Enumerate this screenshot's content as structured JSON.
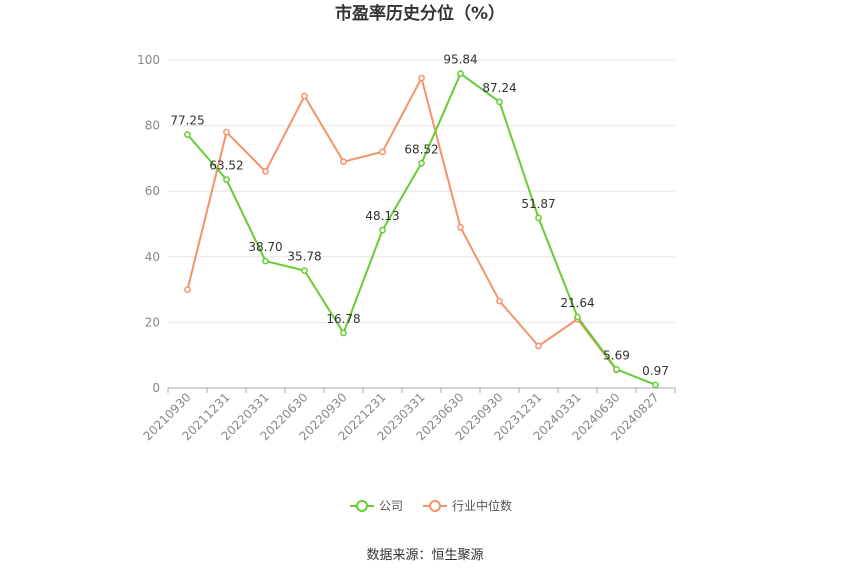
{
  "chart_data": {
    "type": "line",
    "title": "市盈率历史分位（%）",
    "categories": [
      "20210930",
      "20211231",
      "20220331",
      "20220630",
      "20220930",
      "20221231",
      "20230331",
      "20230630",
      "20230930",
      "20231231",
      "20240331",
      "20240630",
      "20240827"
    ],
    "ylim": [
      0,
      100
    ],
    "yticks": [
      0,
      20,
      40,
      60,
      80,
      100
    ],
    "grid": true,
    "legend_position": "bottom",
    "series": [
      {
        "name": "公司",
        "color": "#66cc33",
        "values": [
          77.25,
          63.52,
          38.7,
          35.78,
          16.78,
          48.13,
          68.52,
          95.84,
          87.24,
          51.87,
          21.64,
          5.69,
          0.97
        ],
        "labels": [
          "77.25",
          "63.52",
          "38.70",
          "35.78",
          "16.78",
          "48.13",
          "68.52",
          "95.84",
          "87.24",
          "51.87",
          "21.64",
          "5.69",
          "0.97"
        ]
      },
      {
        "name": "行业中位数",
        "color": "#f4926a",
        "values": [
          30,
          78,
          66,
          89,
          69,
          72,
          94.5,
          49,
          26.5,
          12.8,
          21,
          5.5,
          null
        ]
      }
    ],
    "source": "数据来源：恒生聚源"
  }
}
